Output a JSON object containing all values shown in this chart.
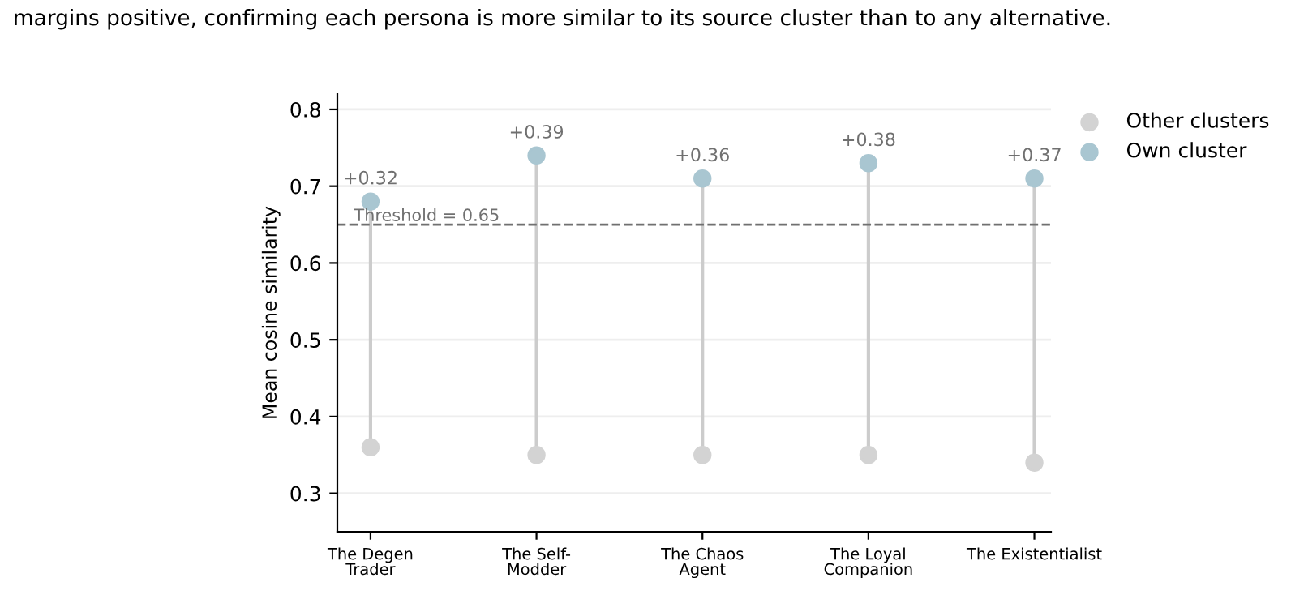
{
  "chart_data": {
    "type": "lollipop",
    "ylabel": "Mean cosine similarity",
    "annotations": [
      "margins positive, confirming each persona is more similar to its source cluster than to any alternative.",
      {
        "text": "+0.32",
        "x": "The Degen\nTrader",
        "y": 0.68
      },
      {
        "text": "+0.39",
        "x": "The Self-\nModder",
        "y": 0.74
      },
      {
        "text": "+0.36",
        "x": "The Chaos\nAgent",
        "y": 0.71
      },
      {
        "text": "+0.38",
        "x": "The Loyal\nCompanion",
        "y": 0.73
      },
      {
        "text": "+0.37",
        "x": "The Existentialist",
        "y": 0.71
      }
    ],
    "categories": [
      "The Degen\nTrader",
      "The Self-\nModder",
      "The Chaos\nAgent",
      "The Loyal\nCompanion",
      "The Existentialist"
    ],
    "series": [
      {
        "name": "Other clusters",
        "color": "#d3d3d3",
        "values": [
          0.36,
          0.35,
          0.35,
          0.35,
          0.34
        ]
      },
      {
        "name": "Own cluster",
        "color": "#a9c6d1",
        "values": [
          0.68,
          0.74,
          0.71,
          0.73,
          0.71
        ]
      }
    ],
    "ylim": [
      0.25,
      0.82
    ],
    "yticks": [
      0.3,
      0.4,
      0.5,
      0.6,
      0.7,
      0.8
    ],
    "ref_lines": [
      {
        "axis": "y",
        "value": 0.65,
        "label": "Threshold = 0.65",
        "color": "#707070",
        "line_style": "dashed"
      }
    ],
    "grid": "y",
    "legend": "top right",
    "marker": "circle"
  }
}
